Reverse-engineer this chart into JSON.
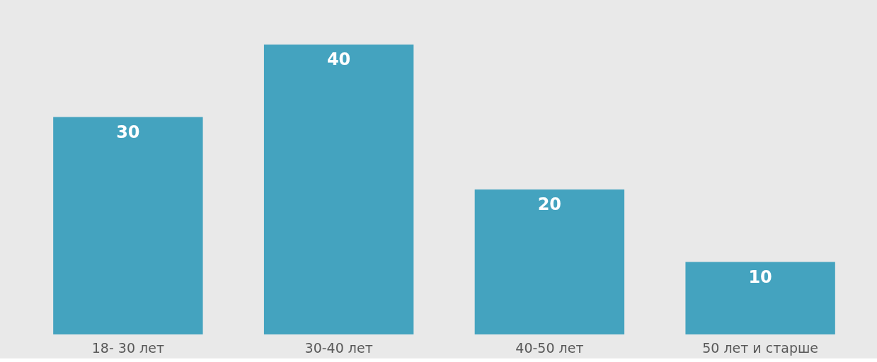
{
  "chart_data": {
    "type": "bar",
    "categories": [
      "18- 30 лет",
      "30-40 лет",
      "40-50 лет",
      "50 лет и старше"
    ],
    "values": [
      30,
      40,
      20,
      10
    ],
    "color": "#44a3bf",
    "data_labels": true
  }
}
